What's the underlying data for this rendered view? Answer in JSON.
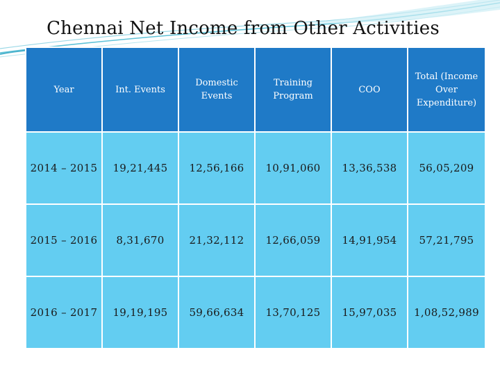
{
  "title": "Chennai Net Income from Other Activities",
  "table": {
    "headers": [
      "Year",
      "Int. Events",
      "Domestic Events",
      "Training Program",
      "COO",
      "Total (Income Over Expenditure)"
    ],
    "rows": [
      [
        "2014 – 2015",
        "19,21,445",
        "12,56,166",
        "10,91,060",
        "13,36,538",
        "56,05,209"
      ],
      [
        "2015 – 2016",
        "8,31,670",
        "21,32,112",
        "12,66,059",
        "14,91,954",
        "57,21,795"
      ],
      [
        "2016 – 2017",
        "19,19,195",
        "59,66,634",
        "13,70,125",
        "15,97,035",
        "1,08,52,989"
      ]
    ]
  },
  "colors": {
    "header_bg": "#1f7ac7",
    "row_bg": "#63cdf1",
    "accent_swoosh": "#5fc3d8"
  }
}
